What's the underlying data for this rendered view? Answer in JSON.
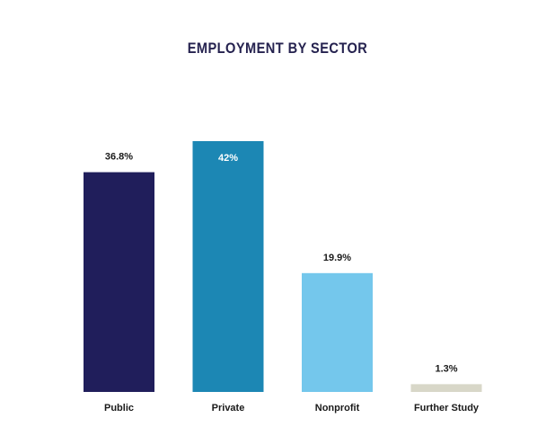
{
  "title": "EMPLOYMENT BY SECTOR",
  "chart_data": {
    "type": "bar",
    "title": "EMPLOYMENT BY SECTOR",
    "categories": [
      "Public",
      "Private",
      "Nonprofit",
      "Further Study"
    ],
    "values": [
      36.8,
      42,
      19.9,
      1.3
    ],
    "value_labels": [
      "36.8%",
      "42%",
      "19.9%",
      "1.3%"
    ],
    "colors": [
      "#201e5b",
      "#1c87b4",
      "#74c7ec",
      "#d8d7c8"
    ],
    "xlabel": "",
    "ylabel": "",
    "ylim": [
      0,
      42
    ],
    "grid": false,
    "legend": "none"
  }
}
